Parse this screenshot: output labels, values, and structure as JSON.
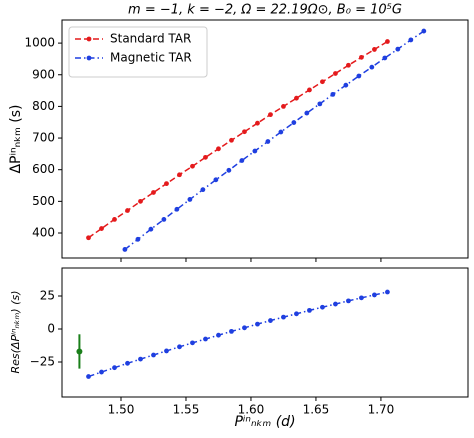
{
  "chart_data": [
    {
      "type": "line",
      "title": "m = −1,  k = −2,  Ω = 22.19Ω⊙,  B₀ = 10⁵G",
      "y_label": "ΔPⁱⁿₙₖₘ (s)",
      "xlim": [
        1.4546,
        1.767
      ],
      "ylim": [
        321,
        1073
      ],
      "yticks": [
        400,
        500,
        600,
        700,
        800,
        900,
        1000
      ],
      "legend": "upper left",
      "series": [
        {
          "name": "Standard TAR",
          "color": "#e41a1c",
          "dash": "6,3",
          "x": [
            1.475,
            1.485,
            1.495,
            1.505,
            1.515,
            1.525,
            1.535,
            1.545,
            1.555,
            1.565,
            1.575,
            1.585,
            1.595,
            1.605,
            1.615,
            1.625,
            1.635,
            1.645,
            1.655,
            1.665,
            1.675,
            1.685,
            1.695,
            1.705
          ],
          "values": [
            385,
            414,
            443,
            471,
            500,
            528,
            556,
            584,
            611,
            639,
            666,
            693,
            720,
            747,
            774,
            800,
            826,
            852,
            878,
            904,
            930,
            955,
            980,
            1005
          ]
        },
        {
          "name": "Magnetic TAR",
          "color": "#1f3fe0",
          "dash": "6,3,1.5,3",
          "x": [
            1.503,
            1.513,
            1.523,
            1.533,
            1.543,
            1.553,
            1.563,
            1.573,
            1.583,
            1.593,
            1.603,
            1.613,
            1.623,
            1.633,
            1.643,
            1.653,
            1.663,
            1.673,
            1.683,
            1.693,
            1.703,
            1.713,
            1.723,
            1.733
          ],
          "values": [
            348,
            380,
            412,
            443,
            475,
            506,
            537,
            568,
            598,
            629,
            659,
            689,
            719,
            749,
            779,
            808,
            838,
            867,
            896,
            924,
            953,
            981,
            1010,
            1038
          ]
        }
      ]
    },
    {
      "type": "line",
      "x_label": "Pⁱⁿₙₖₘ (d)",
      "y_label": "Res(ΔPⁱⁿₙₖₘ) (s)",
      "xlim": [
        1.4546,
        1.767
      ],
      "ylim": [
        -51.5,
        46.2
      ],
      "xticks": [
        {
          "value": 1.5,
          "label": "1.50"
        },
        {
          "value": 1.55,
          "label": "1.55"
        },
        {
          "value": 1.6,
          "label": "1.60"
        },
        {
          "value": 1.65,
          "label": "1.65"
        },
        {
          "value": 1.7,
          "label": "1.70"
        }
      ],
      "yticks": [
        {
          "value": -25,
          "label": "−25"
        },
        0,
        25
      ],
      "series": [
        {
          "color": "#1f3fe0",
          "dash": "6,3,1.5,3",
          "x": [
            1.475,
            1.485,
            1.495,
            1.505,
            1.515,
            1.525,
            1.535,
            1.545,
            1.555,
            1.565,
            1.575,
            1.585,
            1.595,
            1.605,
            1.615,
            1.625,
            1.635,
            1.645,
            1.655,
            1.665,
            1.675,
            1.685,
            1.695,
            1.705
          ],
          "values": [
            -36,
            -32.6,
            -29.3,
            -26.0,
            -22.8,
            -19.7,
            -16.6,
            -13.5,
            -10.5,
            -7.6,
            -4.7,
            -1.8,
            0.9,
            3.7,
            6.4,
            9.0,
            11.5,
            14.1,
            16.5,
            18.9,
            21.3,
            23.6,
            25.8,
            28.0
          ]
        },
        {
          "color": "#1a7f1a",
          "x": [
            1.468
          ],
          "values": [
            -17
          ],
          "errors": [
            13
          ]
        }
      ]
    }
  ]
}
